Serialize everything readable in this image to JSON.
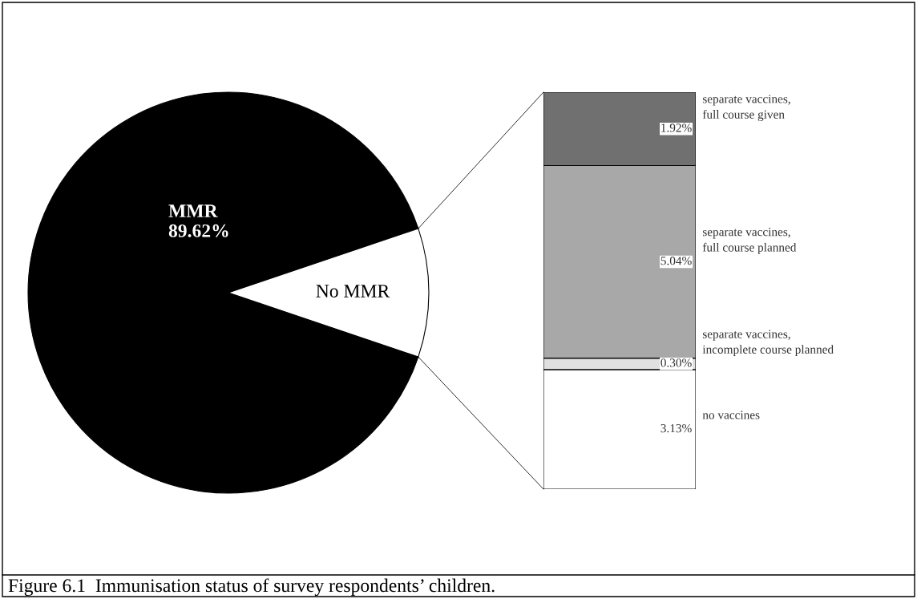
{
  "chart_data": [
    {
      "type": "pie",
      "title": "Figure 6.1  Immunisation status of survey respondents’ children.",
      "categories": [
        "MMR",
        "No MMR"
      ],
      "values": [
        89.62,
        10.38
      ],
      "colors": [
        "#000000",
        "#ffffff"
      ],
      "value_labels": [
        "89.62%",
        null
      ]
    },
    {
      "type": "bar",
      "stacked": true,
      "categories": [
        null
      ],
      "series": [
        {
          "name": "no vaccines",
          "color": "#ffffff",
          "values": [
            3.13
          ],
          "value_labels": [
            "3.13%"
          ]
        },
        {
          "name": "separate vaccines, incomplete course planned",
          "color": "#e0e0e0",
          "values": [
            0.3
          ],
          "value_labels": [
            "0.30%"
          ]
        },
        {
          "name": "separate vaccines, full course planned",
          "color": "#a8a8a8",
          "values": [
            5.04
          ],
          "value_labels": [
            "5.04%"
          ]
        },
        {
          "name": "separate vaccines, full course given",
          "color": "#707070",
          "values": [
            1.92
          ],
          "value_labels": [
            "1.92%"
          ]
        }
      ]
    }
  ]
}
